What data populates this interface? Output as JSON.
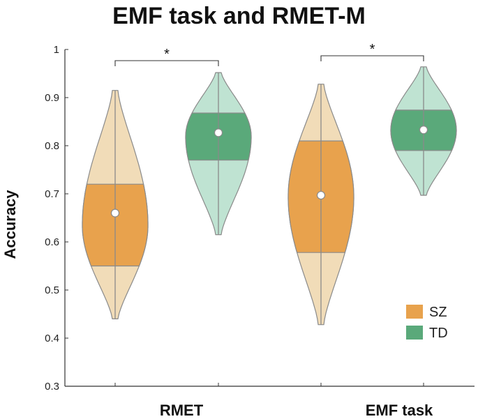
{
  "chart_data": {
    "type": "violin",
    "title": "EMF task and RMET-M",
    "ylabel": "Accuracy",
    "xlabel": "",
    "ylim": [
      0.3,
      1.0
    ],
    "yticks": [
      0.3,
      0.4,
      0.5,
      0.6,
      0.7,
      0.8,
      0.9,
      1
    ],
    "categories": [
      "RMET",
      "EMF task"
    ],
    "legend": {
      "position": "bottom-right",
      "entries": [
        "SZ",
        "TD"
      ]
    },
    "series": [
      {
        "name": "SZ",
        "color": "#e8a24d",
        "light_color": "#f1dcb8",
        "values": [
          {
            "category": "RMET",
            "min": 0.44,
            "q1": 0.55,
            "median": 0.66,
            "q3": 0.72,
            "max": 0.915
          },
          {
            "category": "EMF task",
            "min": 0.428,
            "q1": 0.578,
            "median": 0.697,
            "q3": 0.81,
            "max": 0.928
          }
        ]
      },
      {
        "name": "TD",
        "color": "#5aa97a",
        "light_color": "#bfe3d2",
        "values": [
          {
            "category": "RMET",
            "min": 0.615,
            "q1": 0.77,
            "median": 0.827,
            "q3": 0.868,
            "max": 0.952
          },
          {
            "category": "EMF task",
            "min": 0.697,
            "q1": 0.79,
            "median": 0.833,
            "q3": 0.874,
            "max": 0.964
          }
        ]
      }
    ],
    "annotations": [
      {
        "category": "RMET",
        "label": "*"
      },
      {
        "category": "EMF task",
        "label": "*"
      }
    ]
  }
}
